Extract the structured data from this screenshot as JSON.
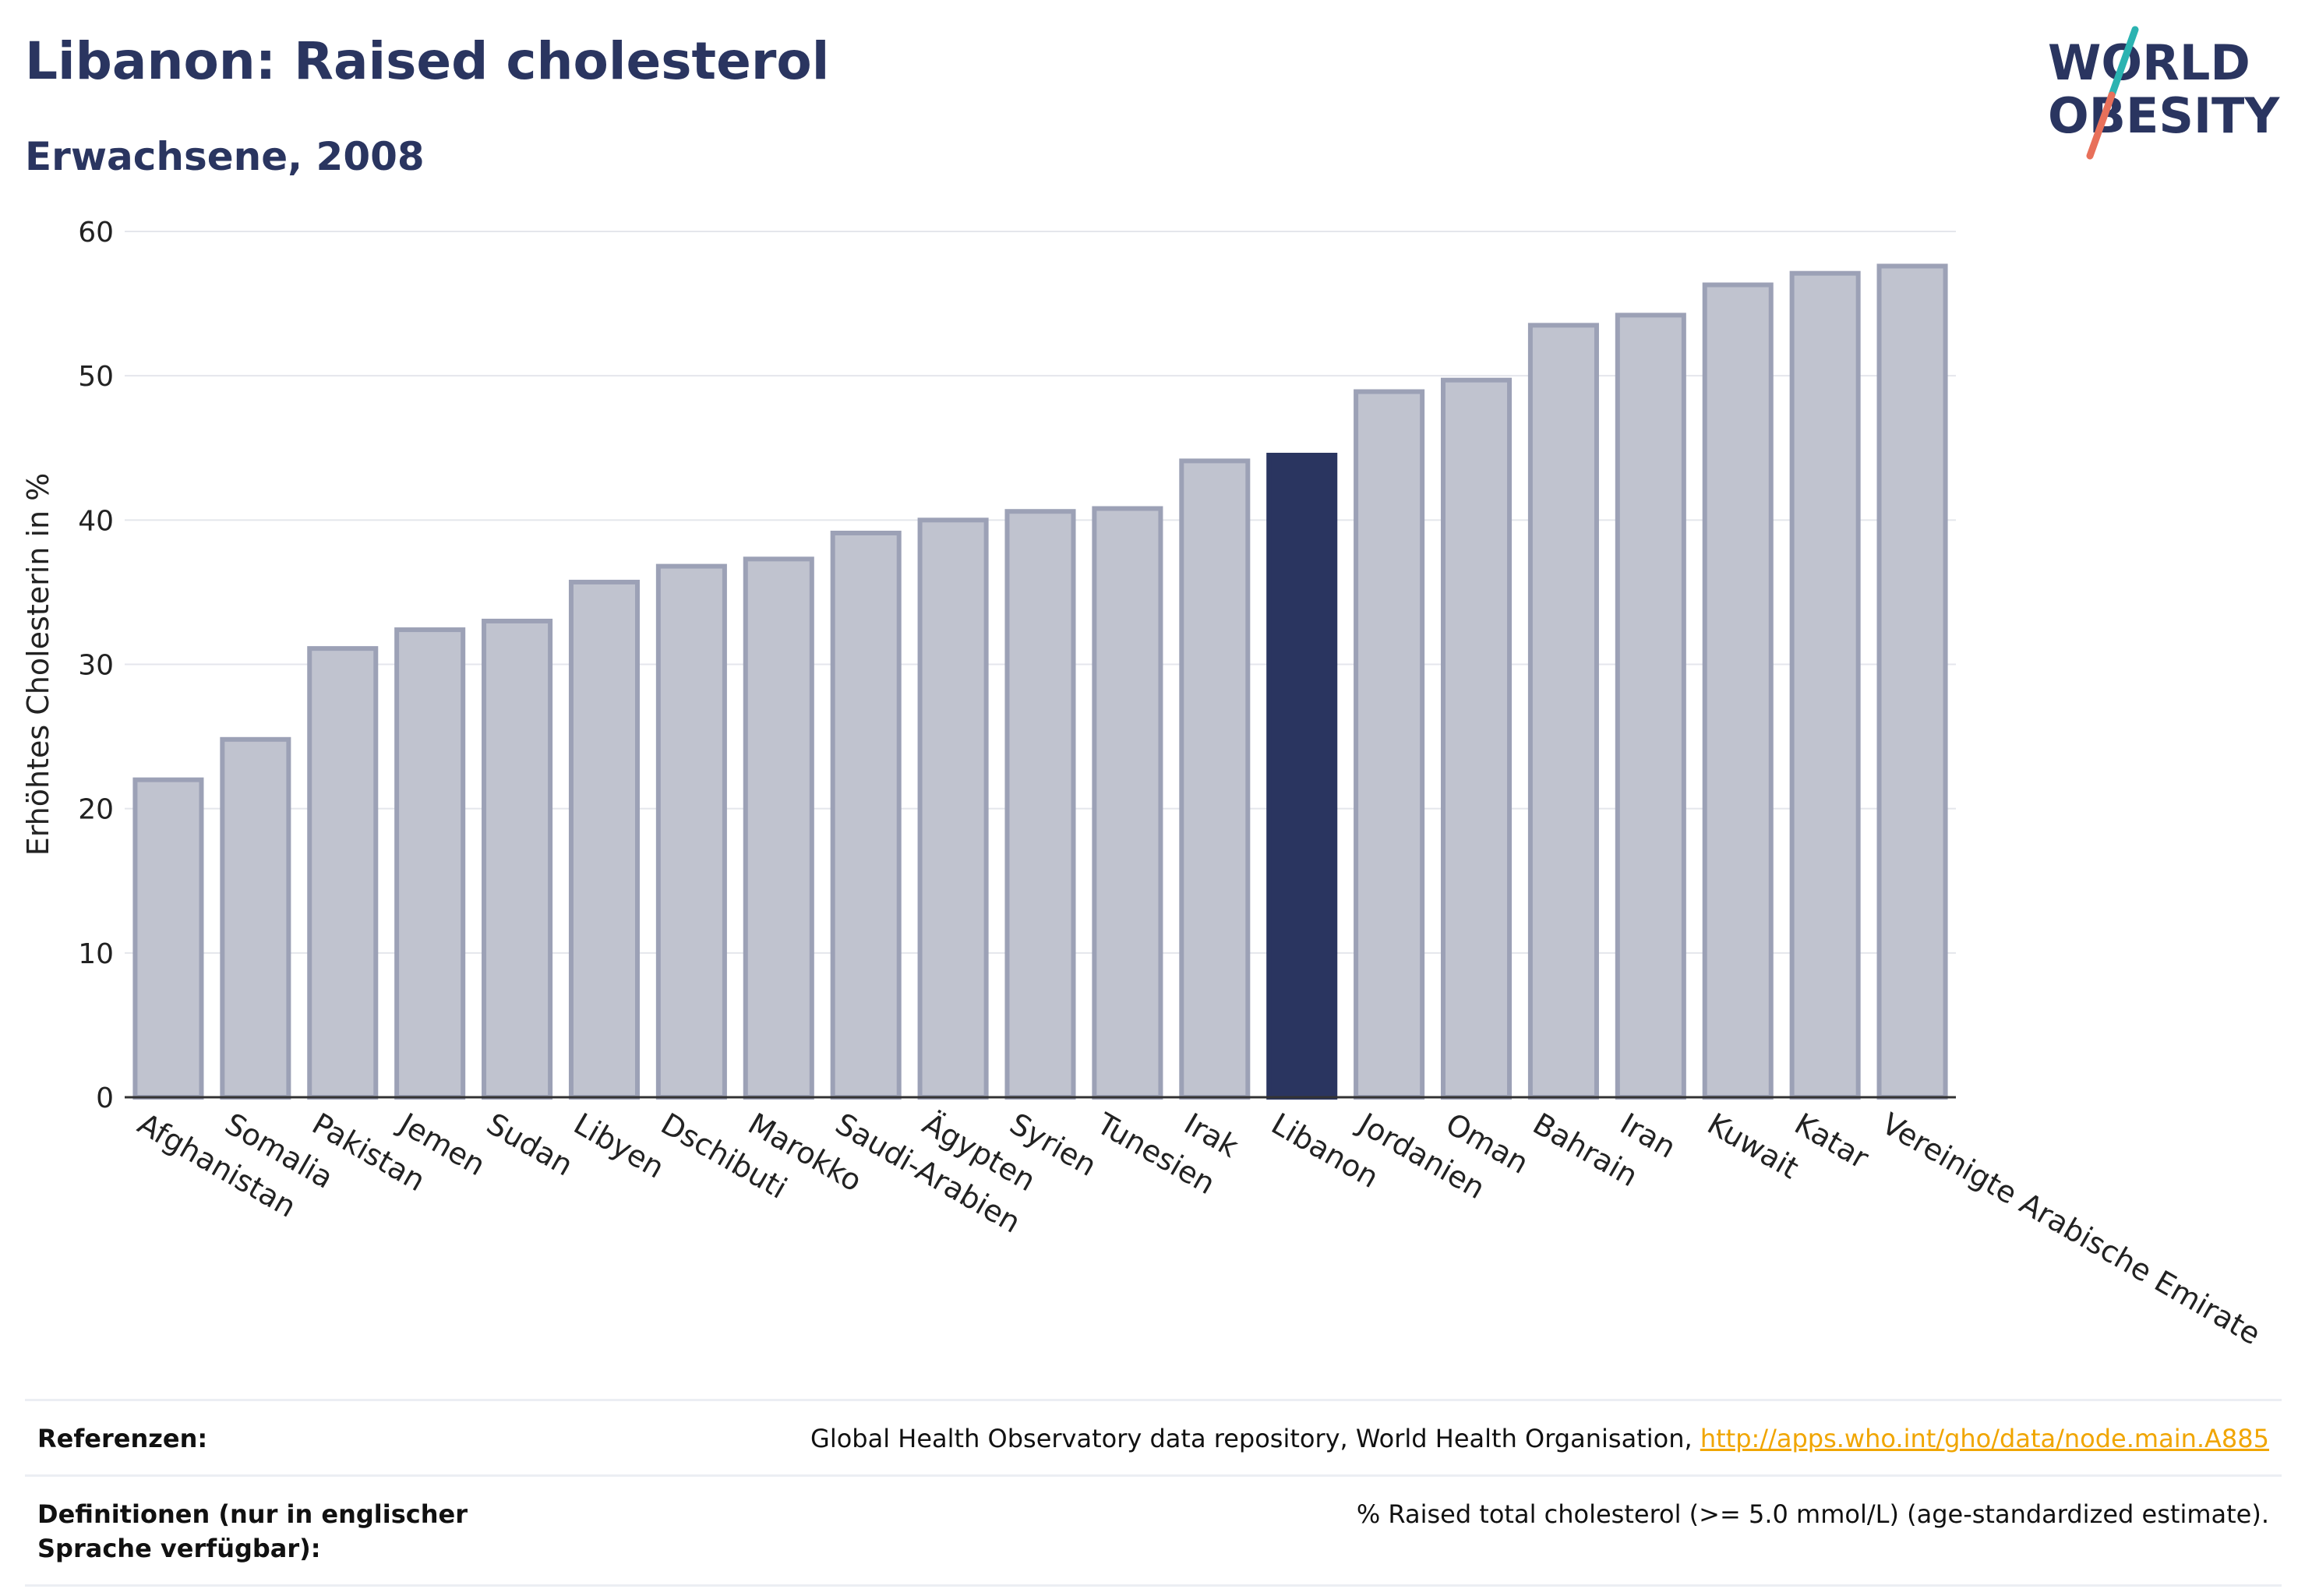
{
  "header": {
    "title": "Libanon: Raised cholesterol",
    "subtitle": "Erwachsene, 2008"
  },
  "logo": {
    "line1": "WORLD",
    "line2": "OBESITY",
    "colors": {
      "text": "#2a3560",
      "slash_teal": "#2bb3b1",
      "slash_coral": "#e8705a"
    }
  },
  "chart_data": {
    "type": "bar",
    "ylabel": "Erhöhtes Cholesterin in %",
    "ylim": [
      0,
      60
    ],
    "yticks": [
      0,
      10,
      20,
      30,
      40,
      50,
      60
    ],
    "grid": true,
    "highlight": "Libanon",
    "colors": {
      "bar": "#c0c3cf",
      "bar_edge": "#9ca1b6",
      "highlight": "#2a3560"
    },
    "categories": [
      "Afghanistan",
      "Somalia",
      "Pakistan",
      "Jemen",
      "Sudan",
      "Libyen",
      "Dschibuti",
      "Marokko",
      "Saudi-Arabien",
      "Ägypten",
      "Syrien",
      "Tunesien",
      "Irak",
      "Libanon",
      "Jordanien",
      "Oman",
      "Bahrain",
      "Iran",
      "Kuwait",
      "Katar",
      "Vereinigte Arabische Emirate"
    ],
    "values": [
      22.0,
      24.8,
      31.1,
      32.4,
      33.0,
      35.7,
      36.8,
      37.3,
      39.1,
      40.0,
      40.6,
      40.8,
      44.1,
      44.5,
      48.9,
      49.7,
      53.5,
      54.2,
      56.3,
      57.1,
      57.6
    ]
  },
  "footer": {
    "references_label": "Referenzen:",
    "references_text": "Global Health Observatory data repository, World Health Organisation, ",
    "references_link": "http://apps.who.int/gho/data/node.main.A885",
    "definitions_label": "Definitionen (nur in englischer Sprache verfügbar):",
    "definitions_text": "% Raised total cholesterol (>= 5.0 mmol/L) (age-standardized estimate)."
  }
}
